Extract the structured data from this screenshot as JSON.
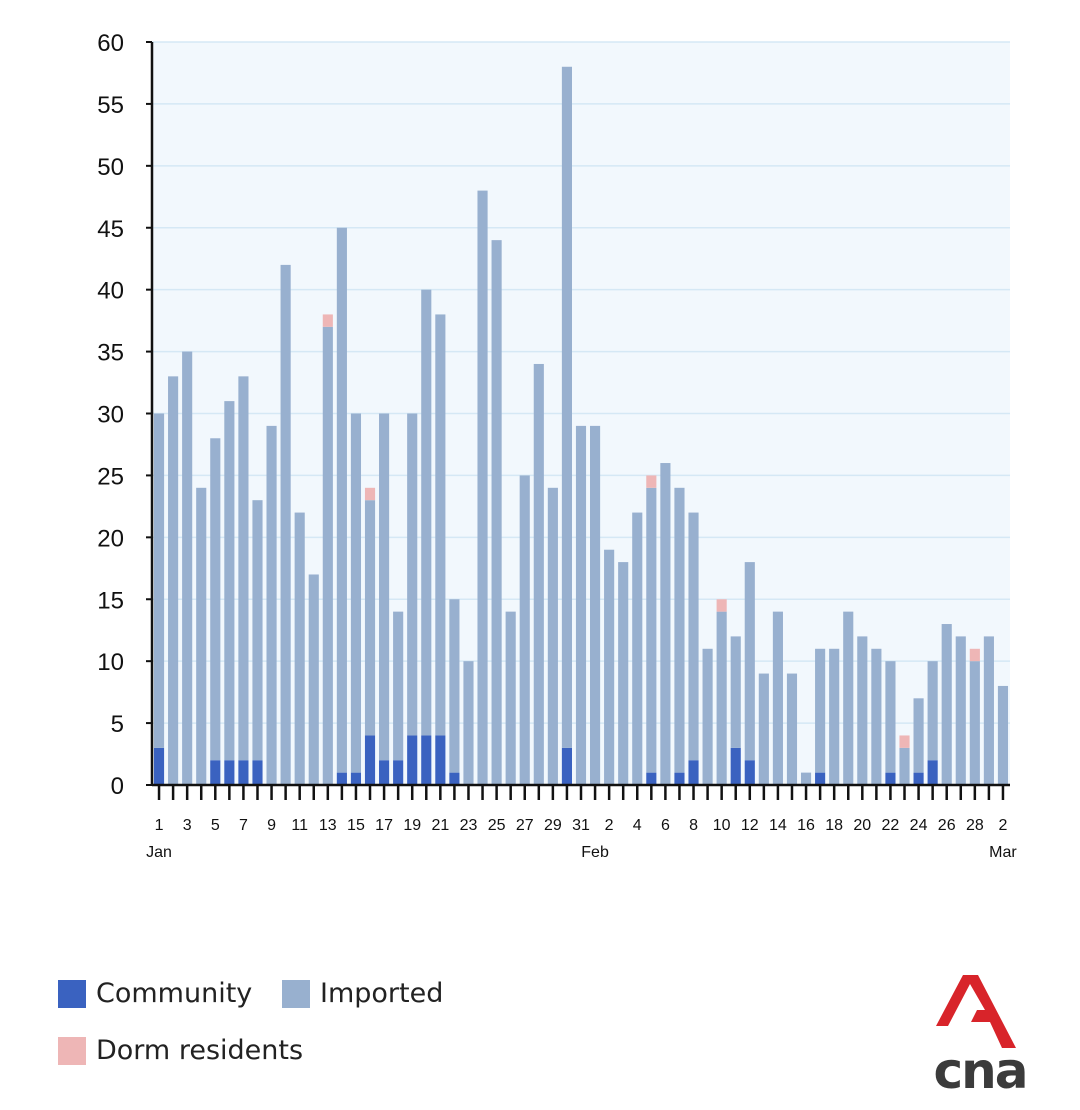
{
  "colors": {
    "community": "#3a62c0",
    "imported": "#98b0cf",
    "dorm": "#eeb6b6",
    "plot_bg": "#f2f8fd",
    "grid": "#d5e8f5",
    "axis": "#111111",
    "logo_red": "#d8242a",
    "logo_text": "#3b3b3b"
  },
  "chart_data": {
    "type": "bar",
    "stacked": true,
    "title": "",
    "xlabel": "",
    "ylabel": "",
    "ylim": [
      0,
      60
    ],
    "yticks": [
      0,
      5,
      10,
      15,
      20,
      25,
      30,
      35,
      40,
      45,
      50,
      55,
      60
    ],
    "categories": [
      "Jan 1",
      "Jan 2",
      "Jan 3",
      "Jan 4",
      "Jan 5",
      "Jan 6",
      "Jan 7",
      "Jan 8",
      "Jan 9",
      "Jan 10",
      "Jan 11",
      "Jan 12",
      "Jan 13",
      "Jan 14",
      "Jan 15",
      "Jan 16",
      "Jan 17",
      "Jan 18",
      "Jan 19",
      "Jan 20",
      "Jan 21",
      "Jan 22",
      "Jan 23",
      "Jan 24",
      "Jan 25",
      "Jan 26",
      "Jan 27",
      "Jan 28",
      "Jan 29",
      "Jan 30",
      "Jan 31",
      "Feb 1",
      "Feb 2",
      "Feb 3",
      "Feb 4",
      "Feb 5",
      "Feb 6",
      "Feb 7",
      "Feb 8",
      "Feb 9",
      "Feb 10",
      "Feb 11",
      "Feb 12",
      "Feb 13",
      "Feb 14",
      "Feb 15",
      "Feb 16",
      "Feb 17",
      "Feb 18",
      "Feb 19",
      "Feb 20",
      "Feb 21",
      "Feb 22",
      "Feb 23",
      "Feb 24",
      "Feb 25",
      "Feb 26",
      "Feb 27",
      "Feb 28",
      "Mar 1",
      "Mar 2"
    ],
    "tick_labels": [
      "1",
      "3",
      "5",
      "7",
      "9",
      "11",
      "13",
      "15",
      "17",
      "19",
      "21",
      "23",
      "25",
      "27",
      "29",
      "31",
      "2",
      "4",
      "6",
      "8",
      "10",
      "12",
      "14",
      "16",
      "18",
      "20",
      "22",
      "24",
      "26",
      "28",
      "2"
    ],
    "month_labels": [
      {
        "text": "Jan",
        "index": 0
      },
      {
        "text": "Feb",
        "index": 31
      },
      {
        "text": "Mar",
        "index": 60
      }
    ],
    "series": [
      {
        "name": "Community",
        "values": [
          3,
          0,
          0,
          0,
          2,
          2,
          2,
          2,
          0,
          0,
          0,
          0,
          0,
          1,
          1,
          4,
          2,
          2,
          4,
          4,
          4,
          1,
          0,
          0,
          0,
          0,
          0,
          0,
          0,
          3,
          0,
          0,
          0,
          0,
          0,
          1,
          0,
          1,
          2,
          0,
          0,
          3,
          2,
          0,
          0,
          0,
          0,
          1,
          0,
          0,
          0,
          0,
          1,
          0,
          1,
          2,
          0,
          0,
          0,
          0,
          0
        ]
      },
      {
        "name": "Imported",
        "values": [
          27,
          33,
          35,
          24,
          26,
          29,
          31,
          21,
          29,
          42,
          22,
          17,
          37,
          44,
          29,
          19,
          28,
          12,
          26,
          36,
          34,
          14,
          10,
          48,
          44,
          14,
          25,
          34,
          24,
          55,
          29,
          29,
          19,
          18,
          22,
          23,
          26,
          23,
          20,
          11,
          14,
          9,
          16,
          9,
          14,
          9,
          1,
          10,
          11,
          14,
          12,
          11,
          9,
          3,
          6,
          8,
          13,
          12,
          10,
          12,
          8
        ]
      },
      {
        "name": "Dorm residents",
        "values": [
          0,
          0,
          0,
          0,
          0,
          0,
          0,
          0,
          0,
          0,
          0,
          0,
          1,
          0,
          0,
          1,
          0,
          0,
          0,
          0,
          0,
          0,
          0,
          0,
          0,
          0,
          0,
          0,
          0,
          0,
          0,
          0,
          0,
          0,
          0,
          1,
          0,
          0,
          0,
          0,
          1,
          0,
          0,
          0,
          0,
          0,
          0,
          0,
          0,
          0,
          0,
          0,
          0,
          1,
          0,
          0,
          0,
          0,
          1,
          0,
          0
        ]
      }
    ],
    "legend": [
      "Community",
      "Imported",
      "Dorm residents"
    ],
    "grid": true,
    "legend_position": "bottom-left"
  },
  "legend": {
    "community_label": "Community",
    "imported_label": "Imported",
    "dorm_label": "Dorm residents"
  },
  "logo": {
    "text": "cna"
  }
}
